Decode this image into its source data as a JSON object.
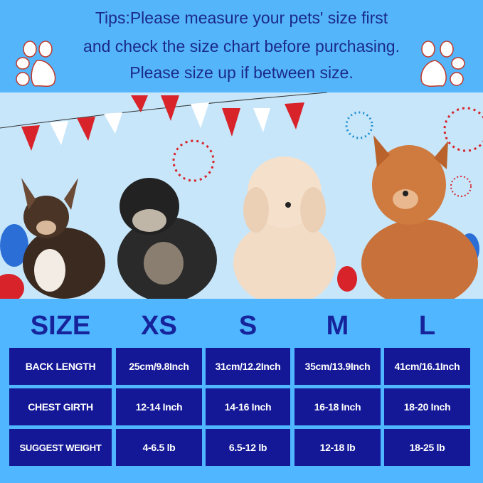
{
  "tips": {
    "line1": "Tips:Please measure your pets' size first",
    "line2": "and check the size chart before purchasing.",
    "line3": "Please size up if between size."
  },
  "icons": [
    "paw-print-icon",
    "paw-print-icon"
  ],
  "colors": {
    "background": "#4fb6ff",
    "text": "#1a2a8c",
    "cell": "#141896",
    "cell_text": "#ffffff"
  },
  "size_chart": {
    "headers": [
      "SIZE",
      "XS",
      "S",
      "M",
      "L"
    ],
    "rows": [
      {
        "label": "BACK LENGTH",
        "values": [
          "25cm/9.8Inch",
          "31cm/12.2Inch",
          "35cm/13.9Inch",
          "41cm/16.1Inch"
        ]
      },
      {
        "label": "CHEST GIRTH",
        "values": [
          "12-14 Inch",
          "14-16 Inch",
          "16-18 Inch",
          "18-20 Inch"
        ]
      },
      {
        "label": "SUGGEST WEIGHT",
        "values": [
          "4-6.5 lb",
          "6.5-12 lb",
          "12-18 lb",
          "18-25 lb"
        ]
      }
    ]
  }
}
